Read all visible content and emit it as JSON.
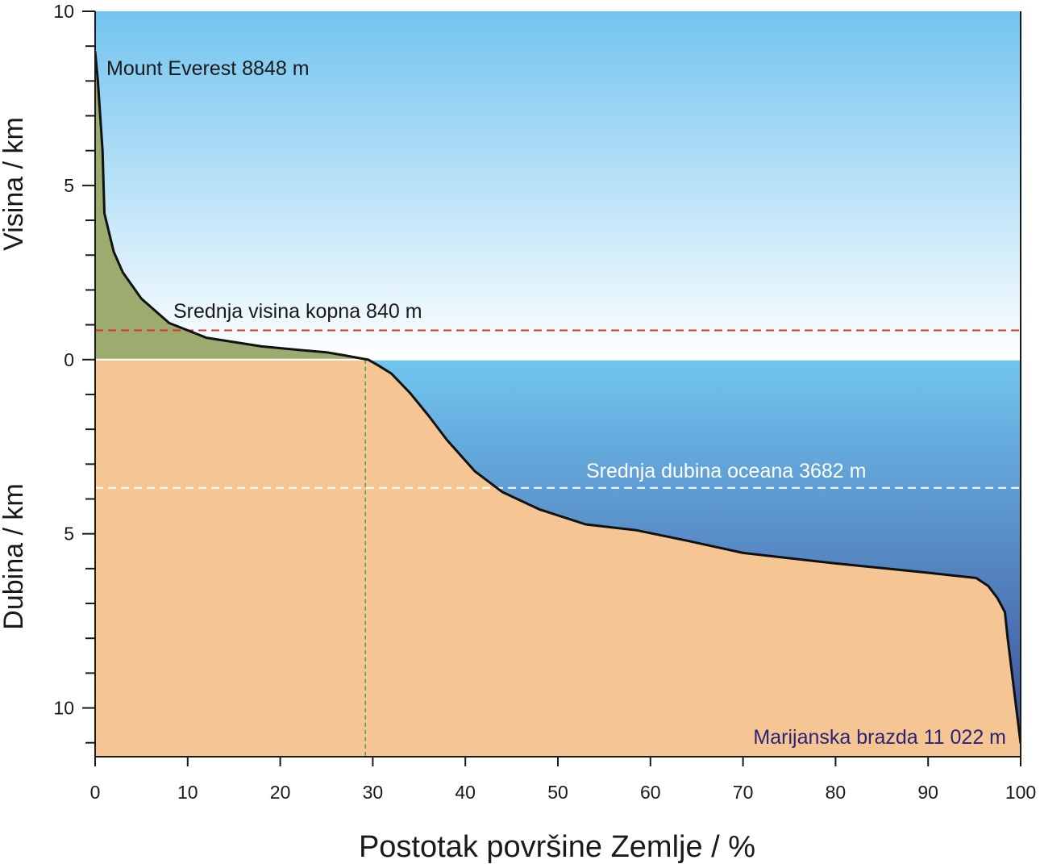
{
  "chart_data": {
    "type": "area",
    "xlabel": "Postotak površine Zemlje / %",
    "ylabel_upper": "Visina / km",
    "ylabel_lower": "Dubina / km",
    "xlim": [
      0,
      100
    ],
    "ylim": [
      -11.4,
      10
    ],
    "x_ticks": [
      0,
      10,
      20,
      30,
      40,
      50,
      60,
      70,
      80,
      90,
      100
    ],
    "y_ticks": [
      {
        "value": 10,
        "label": "10"
      },
      {
        "value": 5,
        "label": "5"
      },
      {
        "value": 0,
        "label": "0"
      },
      {
        "value": -5,
        "label": "5"
      },
      {
        "value": -10,
        "label": "10"
      }
    ],
    "y_minor_step": 1,
    "series": [
      {
        "x": [
          0,
          0.3,
          0.8,
          1.0,
          2,
          3,
          5,
          8,
          12,
          18,
          22,
          25,
          27,
          29,
          29.5,
          30.5,
          32,
          34,
          36,
          38,
          41,
          44,
          48,
          53,
          58.5,
          64,
          70,
          80,
          90,
          95.2,
          96.5,
          97.5,
          98.3,
          98.6,
          100
        ],
        "y": [
          8.848,
          8.0,
          6.0,
          4.2,
          3.1,
          2.5,
          1.75,
          1.05,
          0.63,
          0.38,
          0.28,
          0.21,
          0.12,
          0.02,
          0.0,
          -0.15,
          -0.4,
          -0.95,
          -1.6,
          -2.3,
          -3.2,
          -3.8,
          -4.3,
          -4.73,
          -4.9,
          -5.2,
          -5.55,
          -5.85,
          -6.12,
          -6.27,
          -6.5,
          -6.85,
          -7.25,
          -8.0,
          -11.022
        ]
      }
    ],
    "annotations": {
      "everest": "Mount Everest 8848 m",
      "mean_land": "Srednja visina kopna 840 m",
      "mean_ocean": "Srednja dubina oceana 3682 m",
      "trench": "Marijanska brazda 11 022 m"
    },
    "reference_lines": {
      "mean_land_km": 0.84,
      "mean_ocean_km": -3.682,
      "land_fraction_pct": 29.2
    },
    "colors": {
      "land": "#9cab6e",
      "seabed": "#f5c594",
      "sky_top": "#72c4ef",
      "sky_bottom": "#ffffff",
      "ocean_top": "#71c5f0",
      "ocean_bottom": "#3b4a96",
      "mean_land_line": "#d9342b",
      "mean_ocean_line": "#ffffff",
      "land_fraction_line": "#49a15a",
      "trench_label": "#2b2377",
      "curve": "#111111"
    }
  }
}
